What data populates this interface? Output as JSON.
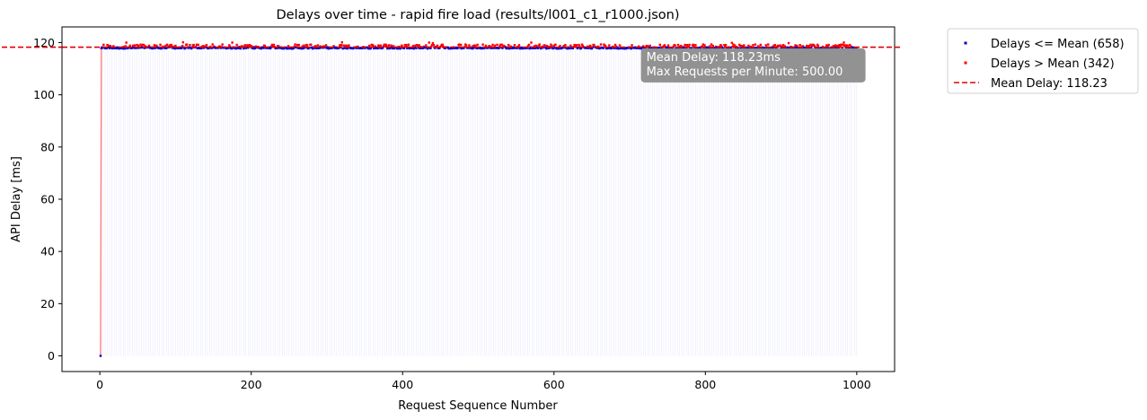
{
  "chart_data": {
    "type": "scatter",
    "title": "Delays over time - rapid fire load (results/l001_c1_r1000.json)",
    "xlabel": "Request Sequence Number",
    "ylabel": "API Delay [ms]",
    "xlim": [
      -50,
      1050
    ],
    "ylim": [
      -6,
      126
    ],
    "xticks": [
      0,
      200,
      400,
      600,
      800,
      1000
    ],
    "yticks": [
      0,
      20,
      40,
      60,
      80,
      100,
      120
    ],
    "grid": false,
    "legend_position": "outside-top-right",
    "mean_delay": 118.23,
    "n_points": 1000,
    "series": [
      {
        "name": "Delays <= Mean (658)",
        "color": "#0000cc",
        "marker": "point",
        "typical_range": [
          117.7,
          118.2
        ],
        "outlier_points": [
          {
            "x": 1,
            "y": 0
          }
        ]
      },
      {
        "name": "Delays > Mean (342)",
        "color": "#ff0000",
        "marker": "point",
        "typical_range": [
          118.3,
          119.3
        ],
        "spikes": [
          {
            "x": 35,
            "y": 120.0
          },
          {
            "x": 110,
            "y": 120.1
          },
          {
            "x": 175,
            "y": 120.0
          },
          {
            "x": 320,
            "y": 120.1
          },
          {
            "x": 435,
            "y": 120.0
          },
          {
            "x": 440,
            "y": 119.8
          },
          {
            "x": 570,
            "y": 120.0
          },
          {
            "x": 835,
            "y": 119.9
          },
          {
            "x": 910,
            "y": 119.8
          },
          {
            "x": 983,
            "y": 120.0
          }
        ]
      }
    ],
    "mean_line": {
      "name": "Mean Delay: 118.23",
      "value": 118.23,
      "color": "#e00000",
      "style": "dashed"
    },
    "annotation": {
      "lines": [
        "Mean Delay: 118.23ms",
        "Max Requests per Minute:  500.00"
      ],
      "anchor": {
        "x": 722,
        "y": 113
      }
    },
    "legend": [
      {
        "label": "Delays <= Mean (658)",
        "color": "#0000cc",
        "kind": "point"
      },
      {
        "label": "Delays > Mean (342)",
        "color": "#ff0000",
        "kind": "point"
      },
      {
        "label": "Mean Delay: 118.23",
        "color": "#e00000",
        "kind": "dashed-line"
      }
    ],
    "connector_line": {
      "color_first_segment": "#ff6b6b",
      "color": "#5b5bf0"
    }
  }
}
